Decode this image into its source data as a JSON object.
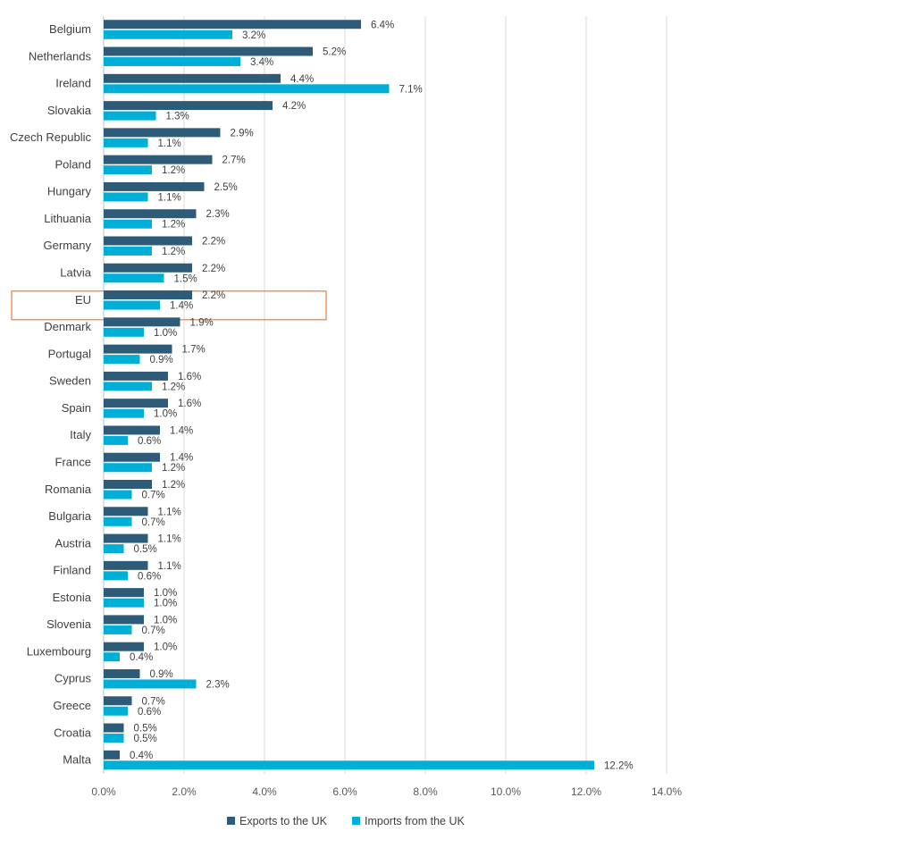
{
  "chart_data": {
    "type": "bar",
    "orientation": "horizontal",
    "categories": [
      "Belgium",
      "Netherlands",
      "Ireland",
      "Slovakia",
      "Czech Republic",
      "Poland",
      "Hungary",
      "Lithuania",
      "Germany",
      "Latvia",
      "EU",
      "Denmark",
      "Portugal",
      "Sweden",
      "Spain",
      "Italy",
      "France",
      "Romania",
      "Bulgaria",
      "Austria",
      "Finland",
      "Estonia",
      "Slovenia",
      "Luxembourg",
      "Cyprus",
      "Greece",
      "Croatia",
      "Malta"
    ],
    "series": [
      {
        "name": "Exports to the UK",
        "color": "#2e5b78",
        "values": [
          6.4,
          5.2,
          4.4,
          4.2,
          2.9,
          2.7,
          2.5,
          2.3,
          2.2,
          2.2,
          2.2,
          1.9,
          1.7,
          1.6,
          1.6,
          1.4,
          1.4,
          1.2,
          1.1,
          1.1,
          1.1,
          1.0,
          1.0,
          1.0,
          0.9,
          0.7,
          0.5,
          0.4
        ],
        "labels": [
          "6.4%",
          "5.2%",
          "4.4%",
          "4.2%",
          "2.9%",
          "2.7%",
          "2.5%",
          "2.3%",
          "2.2%",
          "2.2%",
          "2.2%",
          "1.9%",
          "1.7%",
          "1.6%",
          "1.6%",
          "1.4%",
          "1.4%",
          "1.2%",
          "1.1%",
          "1.1%",
          "1.1%",
          "1.0%",
          "1.0%",
          "1.0%",
          "0.9%",
          "0.7%",
          "0.5%",
          "0.4%"
        ]
      },
      {
        "name": "Imports from the UK",
        "color": "#00afd8",
        "values": [
          3.2,
          3.4,
          7.1,
          1.3,
          1.1,
          1.2,
          1.1,
          1.2,
          1.2,
          1.5,
          1.4,
          1.0,
          0.9,
          1.2,
          1.0,
          0.6,
          1.2,
          0.7,
          0.7,
          0.5,
          0.6,
          1.0,
          0.7,
          0.4,
          2.3,
          0.6,
          0.5,
          12.2
        ],
        "labels": [
          "3.2%",
          "3.4%",
          "7.1%",
          "1.3%",
          "1.1%",
          "1.2%",
          "1.1%",
          "1.2%",
          "1.2%",
          "1.5%",
          "1.4%",
          "1.0%",
          "0.9%",
          "1.2%",
          "1.0%",
          "0.6%",
          "1.2%",
          "0.7%",
          "0.7%",
          "0.5%",
          "0.6%",
          "1.0%",
          "0.7%",
          "0.4%",
          "2.3%",
          "0.6%",
          "0.5%",
          "12.2%"
        ]
      }
    ],
    "xlim": [
      0,
      14
    ],
    "xticks": [
      "0.0%",
      "2.0%",
      "4.0%",
      "6.0%",
      "8.0%",
      "10.0%",
      "12.0%",
      "14.0%"
    ],
    "grid": true,
    "legend_position": "bottom",
    "highlight": {
      "category": "EU",
      "color": "#ed7d31"
    },
    "title": "",
    "xlabel": "",
    "ylabel": ""
  }
}
